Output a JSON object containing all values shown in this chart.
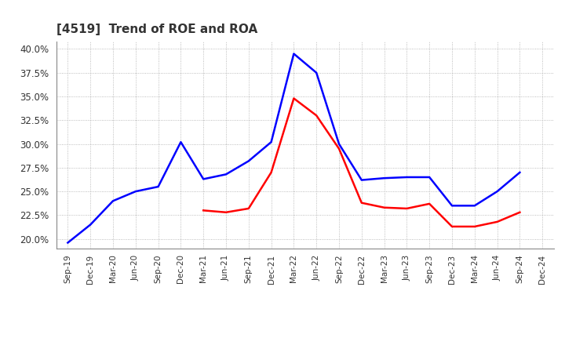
{
  "title": "[4519]  Trend of ROE and ROA",
  "title_fontsize": 11,
  "title_color": "#333333",
  "background_color": "#ffffff",
  "plot_bg_color": "#ffffff",
  "grid_color": "#aaaaaa",
  "roe_color": "#ff0000",
  "roa_color": "#0000ff",
  "line_width": 1.8,
  "ylim": [
    0.19,
    0.408
  ],
  "yticks": [
    0.2,
    0.225,
    0.25,
    0.275,
    0.3,
    0.325,
    0.35,
    0.375,
    0.4
  ],
  "dates": [
    "Sep-19",
    "Dec-19",
    "Mar-20",
    "Jun-20",
    "Sep-20",
    "Dec-20",
    "Mar-21",
    "Jun-21",
    "Sep-21",
    "Dec-21",
    "Mar-22",
    "Jun-22",
    "Sep-22",
    "Dec-22",
    "Mar-23",
    "Jun-23",
    "Sep-23",
    "Dec-23",
    "Mar-24",
    "Jun-24",
    "Sep-24",
    "Dec-24"
  ],
  "roe": [
    null,
    null,
    null,
    null,
    null,
    null,
    0.23,
    0.228,
    0.232,
    0.27,
    0.348,
    0.33,
    0.295,
    0.238,
    0.233,
    0.232,
    0.237,
    0.213,
    0.213,
    0.218,
    0.228,
    null
  ],
  "roa": [
    0.196,
    0.215,
    0.24,
    0.25,
    0.255,
    0.302,
    0.263,
    0.268,
    0.282,
    0.302,
    0.395,
    0.375,
    0.3,
    0.262,
    0.264,
    0.265,
    0.265,
    0.235,
    0.235,
    0.25,
    0.27,
    null
  ]
}
